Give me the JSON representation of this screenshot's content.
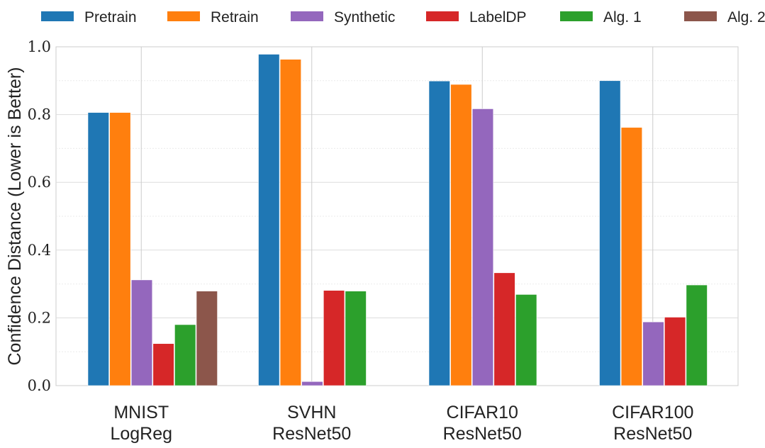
{
  "chart_data": {
    "type": "bar",
    "title": "",
    "xlabel": "",
    "ylabel": "Confidence Distance (Lower is Better)",
    "ylim": [
      0.0,
      1.0
    ],
    "yticks": [
      "0.0",
      "0.2",
      "0.4",
      "0.6",
      "0.8",
      "1.0"
    ],
    "grid": true,
    "legend_position": "top",
    "categories": [
      {
        "line1": "MNIST",
        "line2": "LogReg"
      },
      {
        "line1": "SVHN",
        "line2": "ResNet50"
      },
      {
        "line1": "CIFAR10",
        "line2": "ResNet50"
      },
      {
        "line1": "CIFAR100",
        "line2": "ResNet50"
      }
    ],
    "series": [
      {
        "name": "Pretrain",
        "color": "#1f77b4",
        "values": [
          0.806,
          0.978,
          0.899,
          0.9
        ]
      },
      {
        "name": "Retrain",
        "color": "#ff7f0e",
        "values": [
          0.806,
          0.963,
          0.889,
          0.762
        ]
      },
      {
        "name": "Synthetic",
        "color": "#9467bd",
        "values": [
          0.312,
          0.012,
          0.817,
          0.188
        ]
      },
      {
        "name": "LabelDP",
        "color": "#d62728",
        "values": [
          0.124,
          0.281,
          0.333,
          0.202
        ]
      },
      {
        "name": "Alg. 1",
        "color": "#2ca02c",
        "values": [
          0.18,
          0.279,
          0.269,
          0.297
        ]
      },
      {
        "name": "Alg. 2",
        "color": "#8c564b",
        "values": [
          0.279,
          null,
          null,
          null
        ]
      }
    ]
  }
}
